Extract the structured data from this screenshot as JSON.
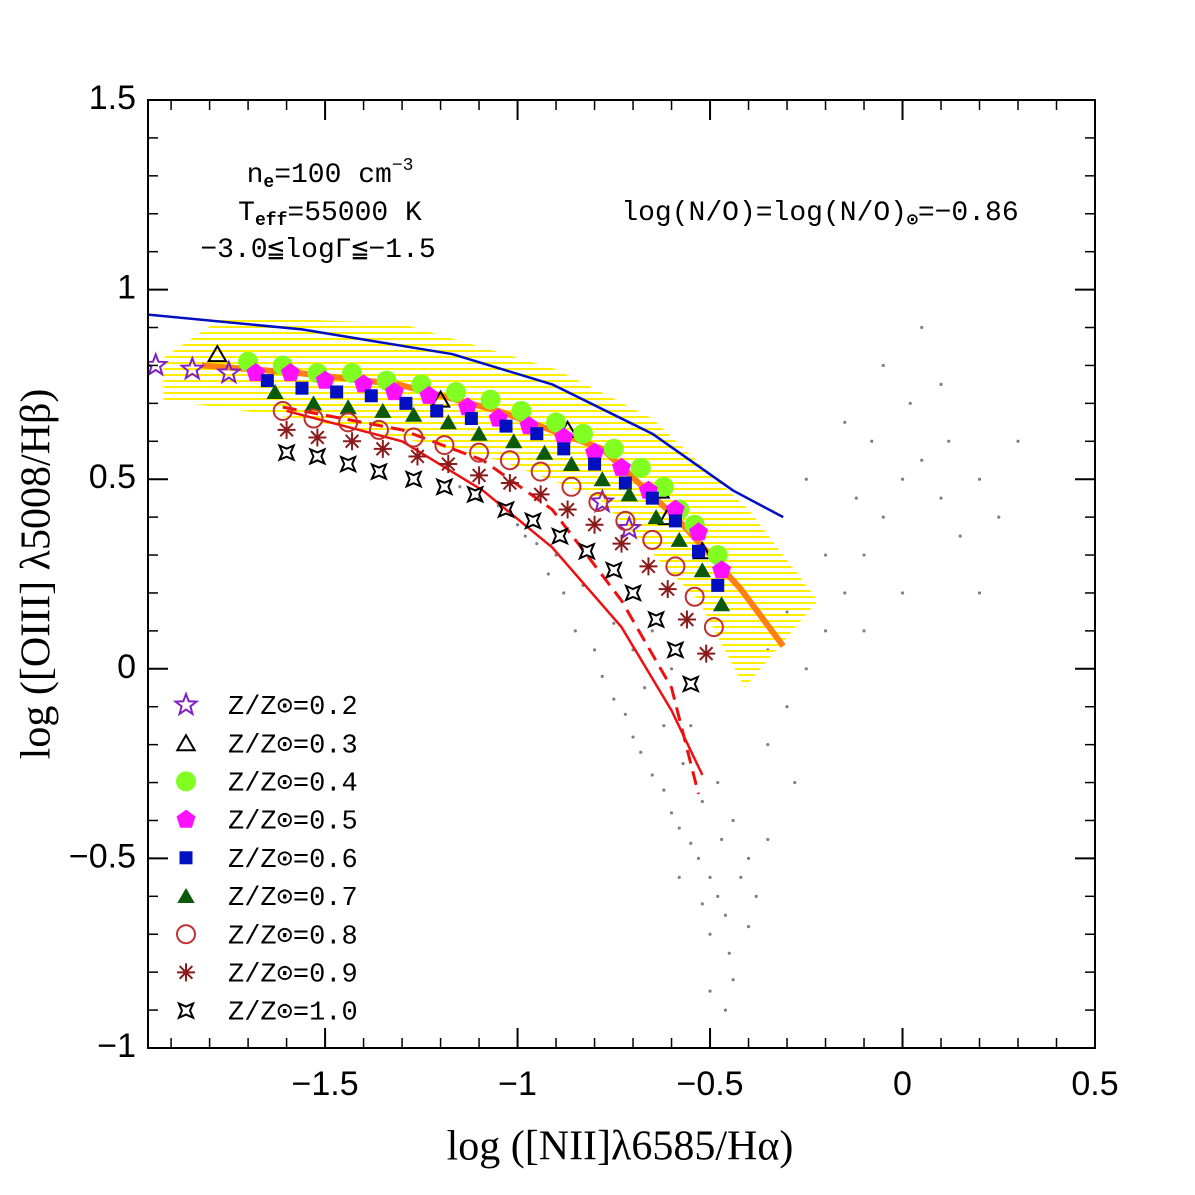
{
  "chart_data": {
    "type": "scatter",
    "x_label": "log ([NII]λ6585/Hα)",
    "y_label": "log ([OIII] λ5008/Hβ)",
    "xlim": [
      -1.96,
      0.5
    ],
    "ylim": [
      -1,
      1.5
    ],
    "xticks": [
      {
        "value": -1.5,
        "label": "−1.5"
      },
      {
        "value": -1,
        "label": "−1"
      },
      {
        "value": -0.5,
        "label": "−0.5"
      },
      0,
      0.5
    ],
    "yticks": [
      {
        "value": -1,
        "label": "−1"
      },
      {
        "value": -0.5,
        "label": "−0.5"
      },
      0,
      0.5,
      1,
      1.5
    ],
    "xminorticks": [
      -1.9,
      -1.8,
      -1.7,
      -1.6,
      -1.4,
      -1.3,
      -1.2,
      -1.1,
      -0.9,
      -0.8,
      -0.7,
      -0.6,
      -0.4,
      -0.3,
      -0.2,
      -0.1,
      0.1,
      0.2,
      0.3,
      0.4
    ],
    "yminorticks": [
      -0.9,
      -0.8,
      -0.7,
      -0.6,
      -0.4,
      -0.3,
      -0.2,
      -0.1,
      0.1,
      0.2,
      0.3,
      0.4,
      0.6,
      0.7,
      0.8,
      0.9,
      1.1,
      1.2,
      1.3,
      1.4
    ],
    "legend": "lower left",
    "annotations": [
      [
        {
          "t": "n"
        },
        {
          "sub": "e"
        },
        {
          "t": "=100 cm"
        },
        {
          "sup": "−3"
        }
      ],
      [
        {
          "t": "T"
        },
        {
          "sub": "eff"
        },
        {
          "t": "=55000 K"
        }
      ],
      [
        {
          "t": "−3.0≦logΓ≦−1.5"
        }
      ],
      [
        {
          "t": "log(N/O)=log(N/O)"
        },
        {
          "sub": "⊙"
        },
        {
          "t": "=−0.86"
        }
      ]
    ],
    "background_points": {
      "color": "#808080",
      "x": [
        -1.15,
        -1.05,
        -1.0,
        -0.95,
        -0.92,
        -0.88,
        -0.85,
        -0.8,
        -0.78,
        -0.75,
        -0.72,
        -0.7,
        -0.68,
        -0.65,
        -0.62,
        -0.6,
        -0.58,
        -0.55,
        -0.53,
        -0.5,
        -0.48,
        -0.46,
        -0.5,
        -0.45,
        -0.47,
        -0.42,
        -0.4,
        -0.44,
        -0.52,
        -0.57,
        -0.62,
        -0.67,
        -0.7,
        -0.75,
        -0.83,
        -0.9,
        -0.98,
        -1.1,
        -0.52,
        -0.44,
        -0.5,
        -0.4,
        -0.38,
        -0.35,
        -0.48,
        -0.55,
        -0.6,
        -0.65,
        -0.58,
        -0.46,
        -0.3,
        -0.25,
        -0.2,
        -0.15,
        -0.1,
        -0.05,
        0,
        0.05,
        -0.08,
        0.02,
        -0.05,
        0.1,
        0.15,
        0.2,
        -0.12,
        -0.2,
        -0.3,
        -0.35,
        0.05,
        -0.15,
        0.1,
        0.2,
        0.25,
        -0.25,
        -0.35,
        -0.28,
        0.0,
        0.3,
        -0.1,
        0.12
      ],
      "values": [
        0.48,
        0.43,
        0.38,
        0.33,
        0.25,
        0.2,
        0.1,
        0.05,
        -0.02,
        -0.08,
        -0.12,
        -0.18,
        -0.22,
        -0.28,
        -0.32,
        -0.38,
        -0.42,
        -0.46,
        -0.5,
        -0.55,
        -0.6,
        -0.65,
        -0.7,
        -0.75,
        -0.45,
        -0.55,
        -0.5,
        -0.4,
        -0.35,
        -0.25,
        -0.15,
        -0.05,
        0.05,
        0.12,
        0.22,
        0.3,
        0.35,
        0.45,
        -0.62,
        -0.82,
        -0.85,
        -0.68,
        -0.6,
        -0.45,
        -0.3,
        -0.15,
        0.0,
        0.1,
        -0.55,
        -0.9,
        -0.1,
        0.0,
        0.1,
        0.2,
        0.3,
        0.4,
        0.5,
        0.55,
        0.6,
        0.7,
        0.8,
        0.45,
        0.35,
        0.5,
        0.45,
        0.3,
        0.15,
        0.05,
        0.9,
        0.65,
        0.75,
        0.2,
        0.4,
        0.5,
        -0.2,
        -0.3,
        0.2,
        0.6,
        0.1,
        0.6
      ]
    },
    "shaded_region": {
      "color": "#ffee00",
      "x": [
        -1.92,
        -1.76,
        -1.3,
        -0.9,
        -0.65,
        -0.4,
        -0.22,
        -0.41,
        -0.53,
        -0.79,
        -1.05,
        -1.31,
        -1.57,
        -1.92
      ],
      "values": [
        0.82,
        0.93,
        0.91,
        0.79,
        0.66,
        0.42,
        0.18,
        -0.05,
        0.18,
        0.45,
        0.55,
        0.61,
        0.66,
        0.71
      ]
    },
    "lines": [
      {
        "color": "#0010c0",
        "style": "solid",
        "width": 2.5,
        "x": [
          -1.96,
          -1.56,
          -1.17,
          -0.91,
          -0.65,
          -0.44,
          -0.31
        ],
        "values": [
          0.934,
          0.895,
          0.83,
          0.75,
          0.62,
          0.47,
          0.4
        ]
      },
      {
        "color": "#ff8010",
        "style": "solid",
        "width": 6,
        "x": [
          -1.82,
          -1.57,
          -1.31,
          -1.05,
          -0.78,
          -0.58,
          -0.42,
          -0.31
        ],
        "values": [
          0.8,
          0.78,
          0.75,
          0.68,
          0.58,
          0.39,
          0.21,
          0.06
        ]
      },
      {
        "color": "#ee1010",
        "style": "solid",
        "width": 2.5,
        "x": [
          -1.6,
          -1.3,
          -1.09,
          -0.91,
          -0.73,
          -0.6,
          -0.52
        ],
        "values": [
          0.68,
          0.6,
          0.47,
          0.32,
          0.11,
          -0.11,
          -0.28
        ]
      },
      {
        "color": "#ee1010",
        "style": "dashed",
        "width": 3,
        "x": [
          -1.61,
          -1.3,
          -1.09,
          -0.91,
          -0.73,
          -0.6,
          -0.53
        ],
        "values": [
          0.69,
          0.63,
          0.55,
          0.42,
          0.18,
          -0.05,
          -0.33
        ]
      }
    ],
    "series": [
      {
        "name": "Z/Z⊙=0.2",
        "color": "#8020c0",
        "marker": "star5",
        "x": [
          -1.94,
          -1.845,
          -1.75,
          -0.78,
          -0.71
        ],
        "values": [
          0.8,
          0.79,
          0.78,
          0.44,
          0.37
        ]
      },
      {
        "name": "Z/Z⊙=0.3",
        "color": "#000000",
        "marker": "triangle",
        "x": [
          -1.78,
          -1.2,
          -0.87,
          -0.63,
          -0.61,
          -0.52
        ],
        "values": [
          0.83,
          0.71,
          0.63,
          0.47,
          0.4,
          0.31
        ]
      },
      {
        "name": "Z/Z⊙=0.4",
        "color": "#80ff20",
        "marker": "circle",
        "x": [
          -1.7,
          -1.61,
          -1.52,
          -1.43,
          -1.34,
          -1.25,
          -1.16,
          -1.07,
          -0.99,
          -0.9,
          -0.83,
          -0.75,
          -0.68,
          -0.62,
          -0.58,
          -0.54,
          -0.48
        ],
        "values": [
          0.81,
          0.8,
          0.78,
          0.78,
          0.76,
          0.75,
          0.73,
          0.71,
          0.68,
          0.65,
          0.62,
          0.58,
          0.53,
          0.48,
          0.42,
          0.38,
          0.3
        ]
      },
      {
        "name": "Z/Z⊙=0.5",
        "color": "#ff10ff",
        "marker": "pentagon",
        "x": [
          -1.68,
          -1.59,
          -1.5,
          -1.4,
          -1.32,
          -1.23,
          -1.13,
          -1.05,
          -0.97,
          -0.88,
          -0.8,
          -0.73,
          -0.66,
          -0.59,
          -0.53,
          -0.47
        ],
        "values": [
          0.78,
          0.78,
          0.76,
          0.75,
          0.73,
          0.72,
          0.69,
          0.66,
          0.64,
          0.61,
          0.57,
          0.53,
          0.47,
          0.42,
          0.36,
          0.26
        ]
      },
      {
        "name": "Z/Z⊙=0.6",
        "color": "#0010c0",
        "marker": "square",
        "x": [
          -1.65,
          -1.56,
          -1.47,
          -1.38,
          -1.29,
          -1.21,
          -1.12,
          -1.03,
          -0.95,
          -0.88,
          -0.8,
          -0.72,
          -0.65,
          -0.59,
          -0.53,
          -0.48
        ],
        "values": [
          0.76,
          0.74,
          0.73,
          0.72,
          0.7,
          0.68,
          0.66,
          0.64,
          0.62,
          0.58,
          0.54,
          0.49,
          0.45,
          0.39,
          0.31,
          0.22
        ]
      },
      {
        "name": "Z/Z⊙=0.7",
        "color": "#0a5a0a",
        "marker": "triangle-filled",
        "x": [
          -1.63,
          -1.53,
          -1.44,
          -1.35,
          -1.27,
          -1.18,
          -1.1,
          -1.01,
          -0.93,
          -0.86,
          -0.78,
          -0.71,
          -0.64,
          -0.58,
          -0.52,
          -0.47
        ],
        "values": [
          0.73,
          0.7,
          0.69,
          0.68,
          0.67,
          0.65,
          0.62,
          0.6,
          0.57,
          0.54,
          0.5,
          0.46,
          0.4,
          0.34,
          0.26,
          0.17
        ]
      },
      {
        "name": "Z/Z⊙=0.8",
        "color": "#c03030",
        "marker": "circle-open",
        "x": [
          -1.61,
          -1.53,
          -1.44,
          -1.36,
          -1.27,
          -1.19,
          -1.1,
          -1.02,
          -0.94,
          -0.86,
          -0.79,
          -0.72,
          -0.65,
          -0.59,
          -0.54,
          -0.49
        ],
        "values": [
          0.68,
          0.66,
          0.65,
          0.63,
          0.61,
          0.59,
          0.57,
          0.55,
          0.52,
          0.48,
          0.44,
          0.39,
          0.34,
          0.27,
          0.19,
          0.11
        ]
      },
      {
        "name": "Z/Z⊙=0.9",
        "color": "#8b1a1a",
        "marker": "asterisk",
        "x": [
          -1.6,
          -1.52,
          -1.43,
          -1.35,
          -1.26,
          -1.18,
          -1.1,
          -1.02,
          -0.94,
          -0.87,
          -0.8,
          -0.73,
          -0.66,
          -0.61,
          -0.56,
          -0.51
        ],
        "values": [
          0.63,
          0.61,
          0.6,
          0.58,
          0.56,
          0.54,
          0.51,
          0.49,
          0.46,
          0.42,
          0.38,
          0.33,
          0.27,
          0.21,
          0.13,
          0.04
        ]
      },
      {
        "name": "Z/Z⊙=1.0",
        "color": "#000000",
        "marker": "star4",
        "x": [
          -1.6,
          -1.52,
          -1.44,
          -1.36,
          -1.27,
          -1.19,
          -1.11,
          -1.03,
          -0.96,
          -0.89,
          -0.82,
          -0.75,
          -0.7,
          -0.64,
          -0.59,
          -0.55
        ],
        "values": [
          0.57,
          0.56,
          0.54,
          0.52,
          0.5,
          0.48,
          0.46,
          0.42,
          0.39,
          0.35,
          0.31,
          0.26,
          0.2,
          0.13,
          0.05,
          -0.04
        ]
      }
    ]
  }
}
